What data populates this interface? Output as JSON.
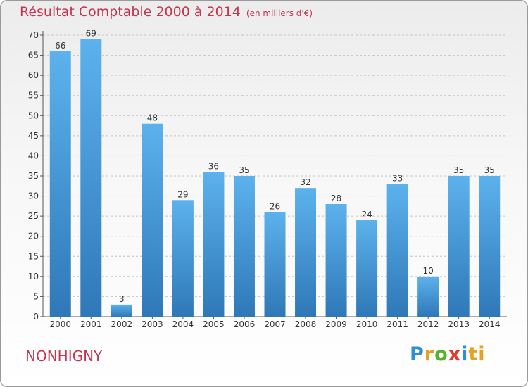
{
  "header": {
    "title": "Résultat Comptable 2000 à 2014",
    "subtitle": "(en milliers d'€)"
  },
  "footer": {
    "commune": "NONHIGNY",
    "logo_letters": [
      "P",
      "r",
      "o",
      "x",
      "i",
      "ti"
    ]
  },
  "colors": {
    "bar_top": "#5cb2ec",
    "bar_bottom": "#2f78b8",
    "title": "#c8344e"
  },
  "chart_data": {
    "type": "bar",
    "title": "Résultat Comptable 2000 à 2014",
    "subtitle": "(en milliers d'€)",
    "categories": [
      "2000",
      "2001",
      "2002",
      "2003",
      "2004",
      "2005",
      "2006",
      "2007",
      "2008",
      "2009",
      "2010",
      "2011",
      "2012",
      "2013",
      "2014"
    ],
    "values": [
      66,
      69,
      3,
      48,
      29,
      36,
      35,
      26,
      32,
      28,
      24,
      33,
      10,
      35,
      35
    ],
    "ylim": [
      0,
      70
    ],
    "yticks": [
      0,
      5,
      10,
      15,
      20,
      25,
      30,
      35,
      40,
      45,
      50,
      55,
      60,
      65,
      70
    ],
    "grid": true,
    "xlabel": "",
    "ylabel": ""
  }
}
